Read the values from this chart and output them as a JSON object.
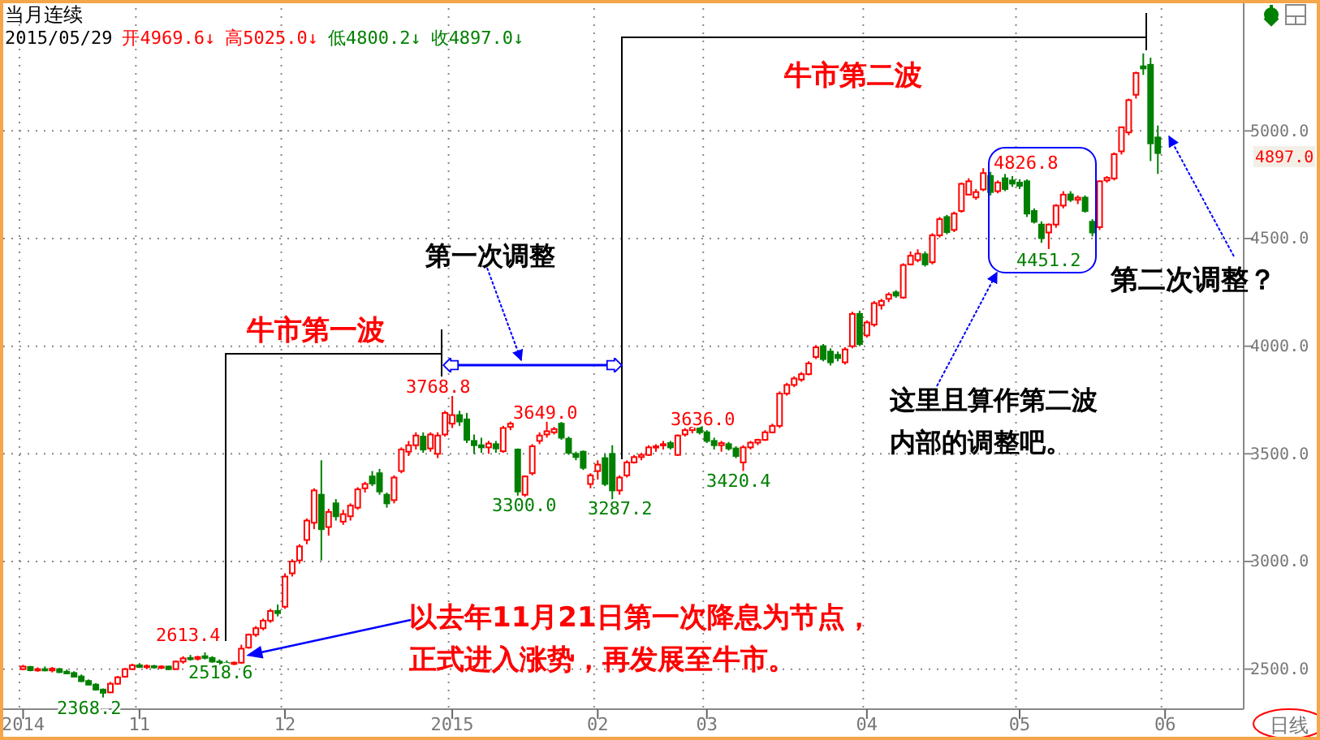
{
  "chart_data": {
    "type": "candlestick",
    "title": "当月连续",
    "subtitle": "2015/05/29 开4969.6↓ 高5025.0↓ 低4800.2↓ 收4897.0↓",
    "categories": [
      "2014",
      null,
      null,
      null,
      null,
      null,
      null,
      null,
      null,
      null,
      null,
      null,
      null,
      null,
      null,
      null,
      "11",
      null,
      null,
      null,
      null,
      null,
      null,
      null,
      null,
      null,
      null,
      null,
      null,
      null,
      null,
      null,
      null,
      null,
      null,
      null,
      "12",
      null,
      null,
      null,
      null,
      null,
      null,
      null,
      null,
      null,
      null,
      null,
      null,
      null,
      null,
      null,
      null,
      null,
      null,
      null,
      null,
      null,
      null,
      "2015",
      null,
      null,
      null,
      null,
      null,
      null,
      null,
      null,
      null,
      null,
      null,
      null,
      null,
      null,
      null,
      null,
      null,
      null,
      null,
      "02",
      null,
      null,
      null,
      null,
      null,
      null,
      null,
      null,
      null,
      null,
      null,
      null,
      null,
      null,
      "03",
      null,
      null,
      null,
      null,
      null,
      null,
      null,
      null,
      null,
      null,
      null,
      null,
      null,
      null,
      null,
      null,
      null,
      null,
      null,
      null,
      null,
      "04",
      null,
      null,
      null,
      null,
      null,
      null,
      null,
      null,
      null,
      null,
      null,
      null,
      null,
      null,
      null,
      null,
      null,
      null,
      null,
      null,
      "05",
      null,
      null,
      null,
      null,
      null,
      null,
      null,
      null,
      null,
      null,
      null,
      null,
      null,
      null,
      null,
      null,
      null,
      null,
      null,
      "06"
    ],
    "ohlc": [
      [
        2500,
        2520,
        2495,
        2512
      ],
      [
        2510,
        2515,
        2490,
        2495
      ],
      [
        2496,
        2508,
        2488,
        2500
      ],
      [
        2500,
        2512,
        2490,
        2494
      ],
      [
        2494,
        2510,
        2485,
        2502
      ],
      [
        2500,
        2505,
        2482,
        2486
      ],
      [
        2488,
        2498,
        2476,
        2480
      ],
      [
        2482,
        2490,
        2462,
        2465
      ],
      [
        2466,
        2475,
        2440,
        2444
      ],
      [
        2445,
        2452,
        2425,
        2428
      ],
      [
        2428,
        2435,
        2400,
        2405
      ],
      [
        2405,
        2410,
        2368.2,
        2390
      ],
      [
        2392,
        2440,
        2388,
        2432
      ],
      [
        2432,
        2468,
        2428,
        2462
      ],
      [
        2465,
        2505,
        2460,
        2500
      ],
      [
        2500,
        2525,
        2495,
        2518
      ],
      [
        2518,
        2528,
        2505,
        2510
      ],
      [
        2510,
        2522,
        2500,
        2515
      ],
      [
        2514,
        2520,
        2502,
        2508
      ],
      [
        2508,
        2518,
        2500,
        2512
      ],
      [
        2512,
        2516,
        2495,
        2500
      ],
      [
        2500,
        2540,
        2498,
        2535
      ],
      [
        2535,
        2560,
        2525,
        2550
      ],
      [
        2552,
        2566,
        2540,
        2548
      ],
      [
        2548,
        2562,
        2540,
        2556
      ],
      [
        2560,
        2578,
        2545,
        2552
      ],
      [
        2552,
        2560,
        2530,
        2535
      ],
      [
        2535,
        2545,
        2520,
        2528
      ],
      [
        2528,
        2540,
        2520,
        2525
      ],
      [
        2525,
        2535,
        2518.6,
        2530
      ],
      [
        2530,
        2613.4,
        2525,
        2595
      ],
      [
        2600,
        2665,
        2595,
        2660
      ],
      [
        2660,
        2700,
        2650,
        2690
      ],
      [
        2690,
        2735,
        2680,
        2725
      ],
      [
        2725,
        2780,
        2715,
        2770
      ],
      [
        2770,
        2800,
        2745,
        2760
      ],
      [
        2790,
        2945,
        2780,
        2930
      ],
      [
        2945,
        3010,
        2930,
        3000
      ],
      [
        3005,
        3080,
        2990,
        3070
      ],
      [
        3100,
        3200,
        3080,
        3190
      ],
      [
        3180,
        3340,
        3150,
        3330
      ],
      [
        3310,
        3470,
        3005,
        3150
      ],
      [
        3160,
        3245,
        3120,
        3230
      ],
      [
        3270,
        3290,
        3190,
        3210
      ],
      [
        3185,
        3240,
        3170,
        3220
      ],
      [
        3210,
        3270,
        3190,
        3260
      ],
      [
        3250,
        3345,
        3240,
        3335
      ],
      [
        3340,
        3370,
        3320,
        3360
      ],
      [
        3395,
        3420,
        3350,
        3362
      ],
      [
        3410,
        3430,
        3310,
        3325
      ],
      [
        3310,
        3320,
        3250,
        3270
      ],
      [
        3285,
        3400,
        3270,
        3390
      ],
      [
        3420,
        3530,
        3410,
        3520
      ],
      [
        3510,
        3560,
        3490,
        3540
      ],
      [
        3540,
        3600,
        3520,
        3585
      ],
      [
        3580,
        3600,
        3505,
        3520
      ],
      [
        3525,
        3600,
        3510,
        3590
      ],
      [
        3500,
        3600,
        3480,
        3585
      ],
      [
        3590,
        3700,
        3580,
        3690
      ],
      [
        3640,
        3768.8,
        3620,
        3680
      ],
      [
        3680,
        3700,
        3630,
        3650
      ],
      [
        3660,
        3690,
        3550,
        3565
      ],
      [
        3560,
        3590,
        3500,
        3540
      ],
      [
        3540,
        3575,
        3505,
        3530
      ],
      [
        3530,
        3560,
        3500,
        3548
      ],
      [
        3545,
        3560,
        3505,
        3525
      ],
      [
        3512,
        3630,
        3505,
        3620
      ],
      [
        3625,
        3650,
        3610,
        3640
      ],
      [
        3520,
        3525,
        3300,
        3325
      ],
      [
        3310,
        3400,
        3300,
        3395
      ],
      [
        3410,
        3545,
        3400,
        3535
      ],
      [
        3560,
        3600,
        3545,
        3585
      ],
      [
        3590,
        3649,
        3575,
        3605
      ],
      [
        3600,
        3625,
        3590,
        3615
      ],
      [
        3640,
        3648,
        3565,
        3575
      ],
      [
        3570,
        3580,
        3495,
        3505
      ],
      [
        3500,
        3510,
        3470,
        3485
      ],
      [
        3510,
        3515,
        3425,
        3435
      ],
      [
        3360,
        3410,
        3340,
        3400
      ],
      [
        3420,
        3470,
        3380,
        3450
      ],
      [
        3480,
        3500,
        3350,
        3360
      ],
      [
        3500,
        3540,
        3287.2,
        3330
      ],
      [
        3330,
        3400,
        3310,
        3390
      ],
      [
        3400,
        3470,
        3390,
        3460
      ],
      [
        3460,
        3495,
        3455,
        3485
      ],
      [
        3485,
        3505,
        3470,
        3495
      ],
      [
        3495,
        3540,
        3490,
        3530
      ],
      [
        3530,
        3545,
        3510,
        3535
      ],
      [
        3540,
        3560,
        3520,
        3545
      ],
      [
        3550,
        3560,
        3520,
        3530
      ],
      [
        3495,
        3590,
        3490,
        3585
      ],
      [
        3590,
        3620,
        3580,
        3610
      ],
      [
        3610,
        3636,
        3595,
        3625
      ],
      [
        3625,
        3630,
        3590,
        3600
      ],
      [
        3600,
        3610,
        3550,
        3560
      ],
      [
        3560,
        3575,
        3520,
        3540
      ],
      [
        3540,
        3560,
        3510,
        3550
      ],
      [
        3545,
        3555,
        3515,
        3525
      ],
      [
        3525,
        3535,
        3480,
        3490
      ],
      [
        3460,
        3540,
        3420.4,
        3530
      ],
      [
        3530,
        3560,
        3520,
        3552
      ],
      [
        3552,
        3570,
        3540,
        3565
      ],
      [
        3565,
        3610,
        3560,
        3600
      ],
      [
        3600,
        3640,
        3595,
        3630
      ],
      [
        3630,
        3790,
        3620,
        3780
      ],
      [
        3780,
        3830,
        3770,
        3820
      ],
      [
        3820,
        3860,
        3810,
        3850
      ],
      [
        3845,
        3880,
        3835,
        3870
      ],
      [
        3870,
        3930,
        3865,
        3920
      ],
      [
        3950,
        4005,
        3940,
        3995
      ],
      [
        4000,
        4010,
        3930,
        3940
      ],
      [
        3975,
        3990,
        3910,
        3925
      ],
      [
        3960,
        3975,
        3930,
        3945
      ],
      [
        3925,
        3995,
        3915,
        3985
      ],
      [
        4000,
        4160,
        3990,
        4150
      ],
      [
        4150,
        4165,
        4000,
        4010
      ],
      [
        4050,
        4120,
        4040,
        4110
      ],
      [
        4100,
        4210,
        4090,
        4200
      ],
      [
        4190,
        4220,
        4170,
        4210
      ],
      [
        4220,
        4250,
        4205,
        4240
      ],
      [
        4250,
        4260,
        4225,
        4235
      ],
      [
        4226,
        4385,
        4220,
        4377
      ],
      [
        4380,
        4440,
        4375,
        4420
      ],
      [
        4400,
        4450,
        4390,
        4430
      ],
      [
        4427,
        4440,
        4370,
        4380
      ],
      [
        4390,
        4525,
        4380,
        4515
      ],
      [
        4515,
        4600,
        4505,
        4590
      ],
      [
        4600,
        4610,
        4520,
        4530
      ],
      [
        4540,
        4625,
        4530,
        4616
      ],
      [
        4628,
        4760,
        4620,
        4754
      ],
      [
        4704,
        4780,
        4700,
        4766
      ],
      [
        4691,
        4730,
        4680,
        4716
      ],
      [
        4728,
        4826.8,
        4720,
        4804
      ],
      [
        4791,
        4810,
        4700,
        4716
      ],
      [
        4720,
        4770,
        4710,
        4760
      ],
      [
        4780,
        4800,
        4720,
        4730
      ],
      [
        4770,
        4790,
        4740,
        4755
      ],
      [
        4760,
        4775,
        4730,
        4745
      ],
      [
        4766,
        4775,
        4600,
        4616
      ],
      [
        4628,
        4640,
        4570,
        4578
      ],
      [
        4565,
        4580,
        4480,
        4502
      ],
      [
        4528,
        4570,
        4451.2,
        4565
      ],
      [
        4565,
        4660,
        4550,
        4653
      ],
      [
        4653,
        4720,
        4640,
        4704
      ],
      [
        4705,
        4720,
        4670,
        4680
      ],
      [
        4680,
        4700,
        4660,
        4690
      ],
      [
        4690,
        4700,
        4620,
        4628
      ],
      [
        4578,
        4590,
        4510,
        4528
      ],
      [
        4553,
        4770,
        4540,
        4766
      ],
      [
        4770,
        4790,
        4760,
        4782
      ],
      [
        4779,
        4900,
        4770,
        4892
      ],
      [
        4905,
        5020,
        4890,
        5017
      ],
      [
        4993,
        5150,
        4980,
        5143
      ],
      [
        5168,
        5275,
        5150,
        5269
      ],
      [
        5300,
        5360,
        5260,
        5290
      ],
      [
        5307,
        5340,
        4860,
        4942
      ],
      [
        4969.6,
        5025,
        4800.2,
        4897
      ],
      null
    ],
    "ylim": [
      2314,
      5608
    ],
    "yticks": [
      {
        "value": 2500,
        "label": "2500.0"
      },
      {
        "value": 3000,
        "label": "3000.0"
      },
      {
        "value": 3500,
        "label": "3500.0"
      },
      {
        "value": 4000,
        "label": "4000.0"
      },
      {
        "value": 4500,
        "label": "4500.0"
      },
      {
        "value": 5000,
        "label": "5000.0"
      }
    ],
    "grid": true,
    "annotations": [
      "2368.2",
      "2613.4",
      "2518.6",
      "3768.8",
      "3300.0",
      "3649.0",
      "3287.2",
      "3636.0",
      "3420.4",
      "4826.8",
      "4451.2",
      "牛市第一波",
      "第一次调整",
      "牛市第二波",
      "这里且算作第二波内部的调整吧。",
      "第二次调整？",
      "以去年11月21日第一次降息为节点，正式进入涨势，再发展至牛市。",
      "4897.0",
      "日线"
    ]
  }
}
